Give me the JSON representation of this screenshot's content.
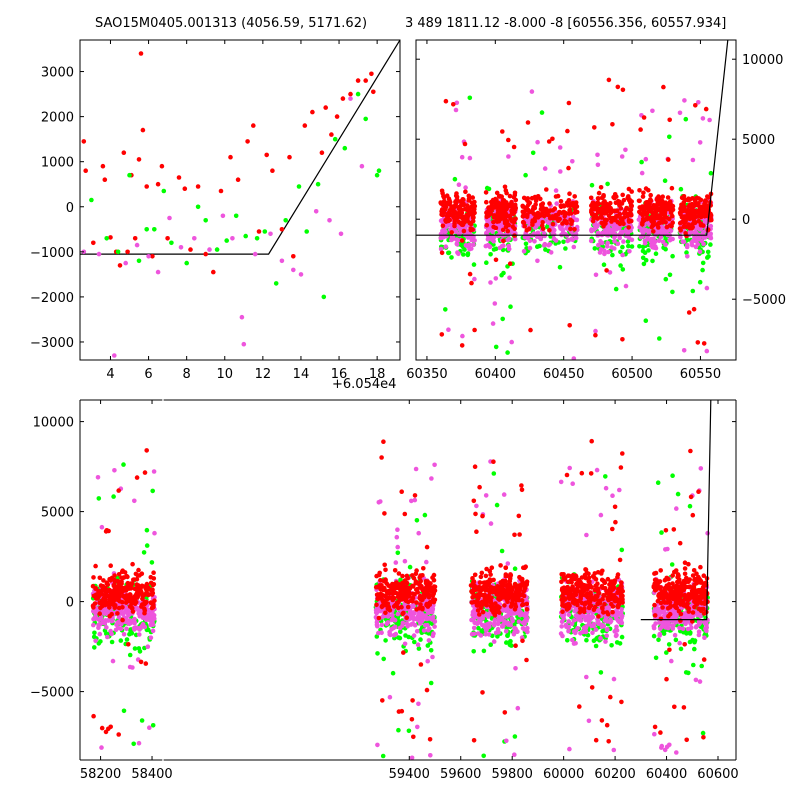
{
  "titles": {
    "left": "SAO15M0405.001313 (4056.59, 5171.62)",
    "right": "3 489 1811.12 -8.000 -8 [60556.356, 60557.934]"
  },
  "offset_label": "+6.054e4",
  "colors": {
    "red": "#ff0000",
    "green": "#00ff00",
    "magenta": "#ee55dd",
    "line": "#000000"
  },
  "chart_data": [
    {
      "type": "scatter",
      "panel": "top-left",
      "xlim": [
        2.4,
        19.2
      ],
      "ylim": [
        -3400,
        3700
      ],
      "xticks": [
        4,
        6,
        8,
        10,
        12,
        14,
        16,
        18
      ],
      "xtick_labels": [
        "4",
        "6",
        "8",
        "10",
        "12",
        "14",
        "16",
        "18"
      ],
      "yticks": [
        -3000,
        -2000,
        -1000,
        0,
        1000,
        2000,
        3000
      ],
      "ytick_labels": [
        "−3000",
        "−2000",
        "−1000",
        "0",
        "1000",
        "2000",
        "3000"
      ],
      "model_line": {
        "x": [
          2.4,
          12.3,
          19.2
        ],
        "y": [
          -1050,
          -1050,
          3700
        ]
      },
      "series": [
        {
          "color": "red",
          "points": [
            [
              2.6,
              1450
            ],
            [
              2.7,
              800
            ],
            [
              3.1,
              -800
            ],
            [
              3.6,
              900
            ],
            [
              3.7,
              600
            ],
            [
              4.0,
              -680
            ],
            [
              4.3,
              -1000
            ],
            [
              4.5,
              -1300
            ],
            [
              4.7,
              1200
            ],
            [
              4.9,
              -1000
            ],
            [
              5.1,
              700
            ],
            [
              5.3,
              -700
            ],
            [
              5.5,
              1050
            ],
            [
              5.6,
              3400
            ],
            [
              5.7,
              1700
            ],
            [
              5.9,
              450
            ],
            [
              6.2,
              -1100
            ],
            [
              6.5,
              500
            ],
            [
              6.7,
              900
            ],
            [
              7.0,
              -700
            ],
            [
              7.6,
              650
            ],
            [
              7.9,
              400
            ],
            [
              8.2,
              -950
            ],
            [
              8.6,
              450
            ],
            [
              9.0,
              -1050
            ],
            [
              9.4,
              -1450
            ],
            [
              9.8,
              350
            ],
            [
              10.3,
              1100
            ],
            [
              10.7,
              600
            ],
            [
              11.2,
              1450
            ],
            [
              11.5,
              1800
            ],
            [
              11.8,
              -550
            ],
            [
              12.2,
              1150
            ],
            [
              12.5,
              800
            ],
            [
              13.0,
              -500
            ],
            [
              13.4,
              1100
            ],
            [
              13.6,
              -1100
            ],
            [
              14.2,
              1800
            ],
            [
              14.6,
              2100
            ],
            [
              15.1,
              1200
            ],
            [
              15.3,
              2200
            ],
            [
              15.6,
              1600
            ],
            [
              15.9,
              2000
            ],
            [
              16.2,
              2400
            ],
            [
              16.6,
              2500
            ],
            [
              17.0,
              2800
            ],
            [
              17.4,
              2800
            ],
            [
              17.7,
              2950
            ],
            [
              17.8,
              2550
            ]
          ]
        },
        {
          "color": "green",
          "points": [
            [
              3.0,
              150
            ],
            [
              3.8,
              -700
            ],
            [
              4.4,
              -1000
            ],
            [
              5.0,
              700
            ],
            [
              5.5,
              -1200
            ],
            [
              5.9,
              -500
            ],
            [
              6.3,
              -500
            ],
            [
              6.8,
              350
            ],
            [
              7.2,
              -800
            ],
            [
              8.0,
              -1250
            ],
            [
              8.6,
              0
            ],
            [
              9.0,
              -300
            ],
            [
              9.6,
              -950
            ],
            [
              10.1,
              -750
            ],
            [
              10.6,
              -200
            ],
            [
              11.1,
              -650
            ],
            [
              11.7,
              -700
            ],
            [
              12.1,
              -550
            ],
            [
              12.7,
              -1700
            ],
            [
              13.2,
              -300
            ],
            [
              13.9,
              450
            ],
            [
              14.3,
              -550
            ],
            [
              14.9,
              500
            ],
            [
              15.2,
              -2000
            ],
            [
              15.8,
              1500
            ],
            [
              16.3,
              1300
            ],
            [
              17.0,
              2500
            ],
            [
              17.4,
              1950
            ],
            [
              18.0,
              700
            ],
            [
              18.1,
              800
            ]
          ]
        },
        {
          "color": "magenta",
          "points": [
            [
              2.6,
              -1000
            ],
            [
              3.4,
              -1050
            ],
            [
              4.2,
              -3300
            ],
            [
              4.8,
              -1250
            ],
            [
              5.4,
              -850
            ],
            [
              6.0,
              -1100
            ],
            [
              6.5,
              -1450
            ],
            [
              7.1,
              -250
            ],
            [
              7.7,
              -900
            ],
            [
              8.4,
              -700
            ],
            [
              9.2,
              -950
            ],
            [
              9.9,
              -200
            ],
            [
              10.4,
              -700
            ],
            [
              10.9,
              -2450
            ],
            [
              11.0,
              -3050
            ],
            [
              11.6,
              -1050
            ],
            [
              12.4,
              -600
            ],
            [
              13.0,
              -1200
            ],
            [
              13.6,
              -1400
            ],
            [
              14.0,
              -1500
            ],
            [
              14.8,
              -100
            ],
            [
              15.5,
              -300
            ],
            [
              16.1,
              -600
            ],
            [
              16.6,
              2400
            ],
            [
              17.2,
              900
            ]
          ]
        }
      ]
    },
    {
      "type": "scatter",
      "panel": "top-right",
      "xlim": [
        60342,
        60576
      ],
      "ylim": [
        -8800,
        11200
      ],
      "xticks": [
        60350,
        60400,
        60450,
        60500,
        60550
      ],
      "xtick_labels": [
        "60350",
        "60400",
        "60450",
        "60500",
        "60550"
      ],
      "yticks": [
        -5000,
        0,
        5000,
        10000
      ],
      "ytick_labels": [
        "−5000",
        "0",
        "5000",
        "10000"
      ],
      "model_line": {
        "x": [
          60342,
          60554.6,
          60570
        ],
        "y": [
          -1000,
          -1000,
          11200
        ]
      },
      "clusters": [
        [
          60360,
          60385
        ],
        [
          60393,
          60415
        ],
        [
          60420,
          60460
        ],
        [
          60470,
          60500
        ],
        [
          60505,
          60530
        ],
        [
          60535,
          60558
        ]
      ]
    },
    {
      "type": "scatter",
      "panel": "bottom",
      "xlim": [
        58120,
        60670
      ],
      "ylim": [
        -8800,
        11200
      ],
      "xticks": [
        58200,
        58400,
        59400,
        59600,
        59800,
        60000,
        60200,
        60400,
        60600
      ],
      "xtick_labels": [
        "58200",
        "58400",
        "59400",
        "59600",
        "59800",
        "60000",
        "60200",
        "60400",
        "60600"
      ],
      "yticks": [
        -5000,
        0,
        5000,
        10000
      ],
      "ytick_labels": [
        "−5000",
        "0",
        "5000",
        "10000"
      ],
      "model_line": {
        "x": [
          60300,
          60556,
          60572
        ],
        "y": [
          -1000,
          -1000,
          11200
        ]
      },
      "seasons": [
        [
          58170,
          58410
        ],
        [
          59270,
          59500
        ],
        [
          59640,
          59860
        ],
        [
          59990,
          60230
        ],
        [
          60350,
          60560
        ]
      ]
    }
  ]
}
